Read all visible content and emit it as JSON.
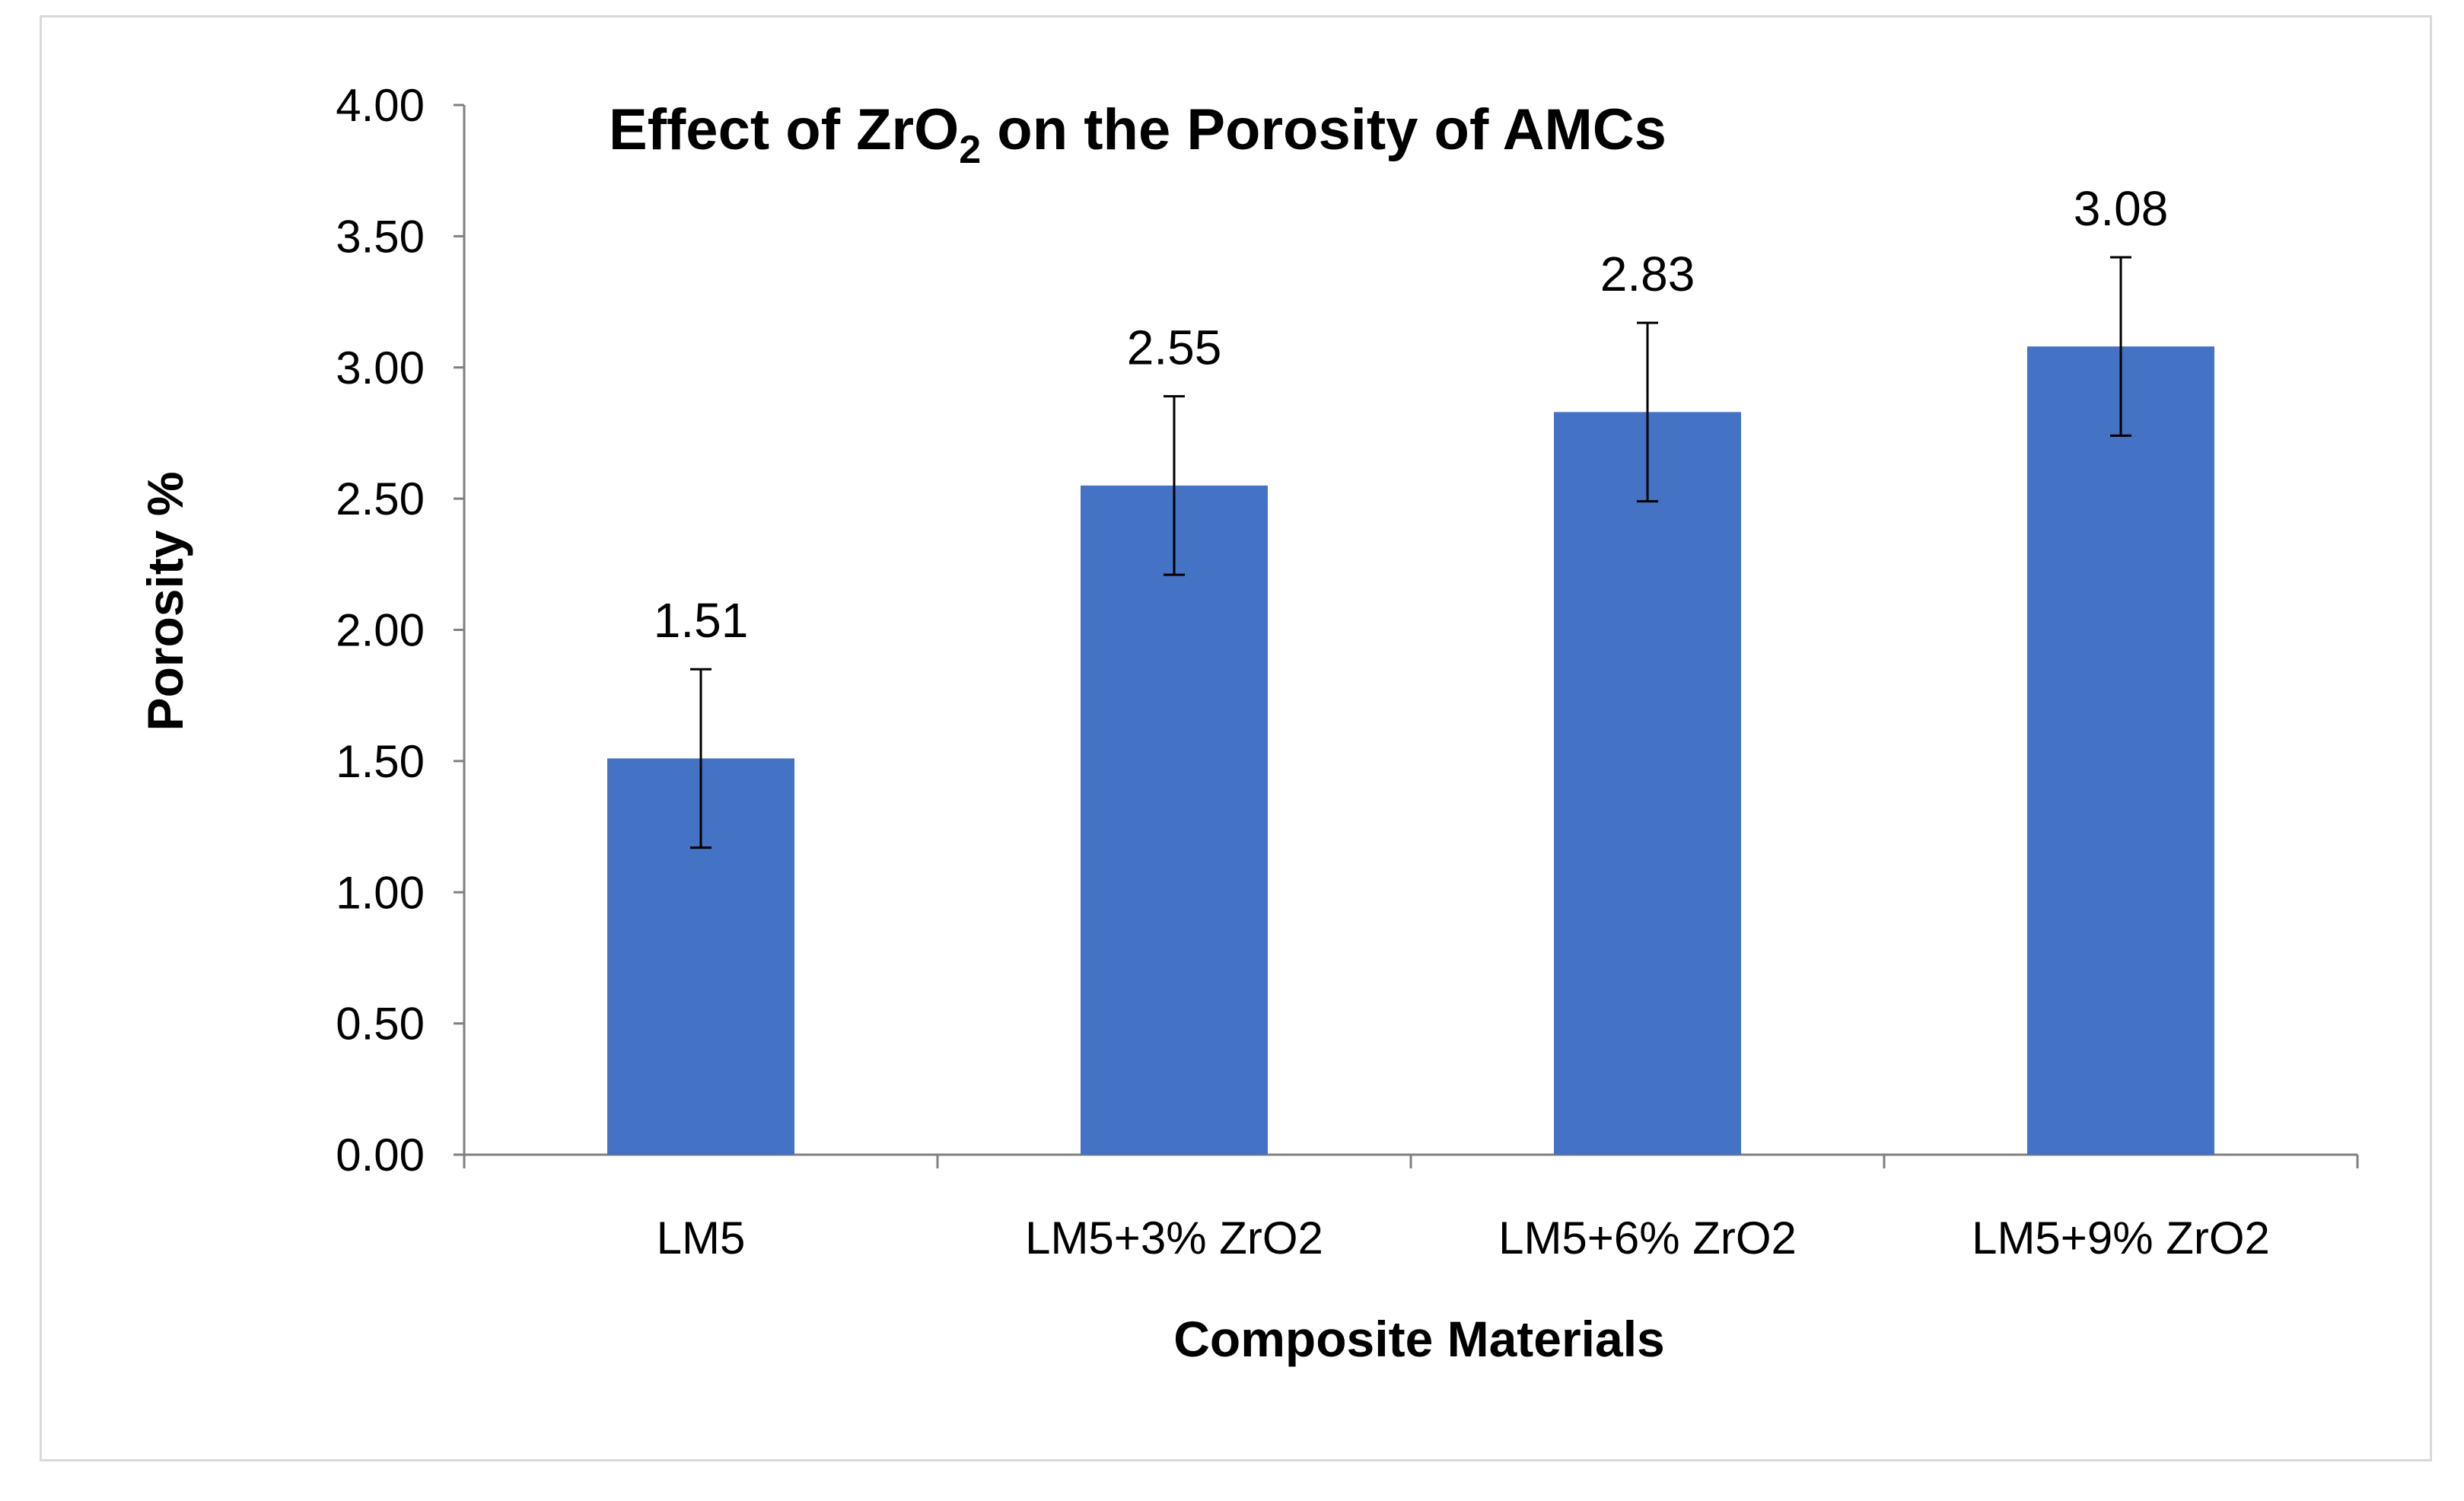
{
  "chart_data": {
    "type": "bar",
    "title": "Effect of ZrO",
    "title_subscript": "2",
    "title_suffix": " on the Porosity of AMCs",
    "xlabel": "Composite Materials",
    "ylabel": "Porosity %",
    "categories": [
      "LM5",
      "LM5+3% ZrO2",
      "LM5+6% ZrO2",
      "LM5+9% ZrO2"
    ],
    "series": [
      {
        "values": [
          1.51,
          2.55,
          2.83,
          3.08
        ],
        "error": [
          0.34,
          0.34,
          0.34,
          0.34
        ],
        "color": "#4472c4"
      }
    ],
    "data_labels": [
      "1.51",
      "2.55",
      "2.83",
      "3.08"
    ],
    "ylim": [
      0,
      4
    ],
    "yticks": [
      "0.00",
      "0.50",
      "1.00",
      "1.50",
      "2.00",
      "2.50",
      "3.00",
      "3.50",
      "4.00"
    ],
    "grid": false,
    "legend": "none"
  }
}
